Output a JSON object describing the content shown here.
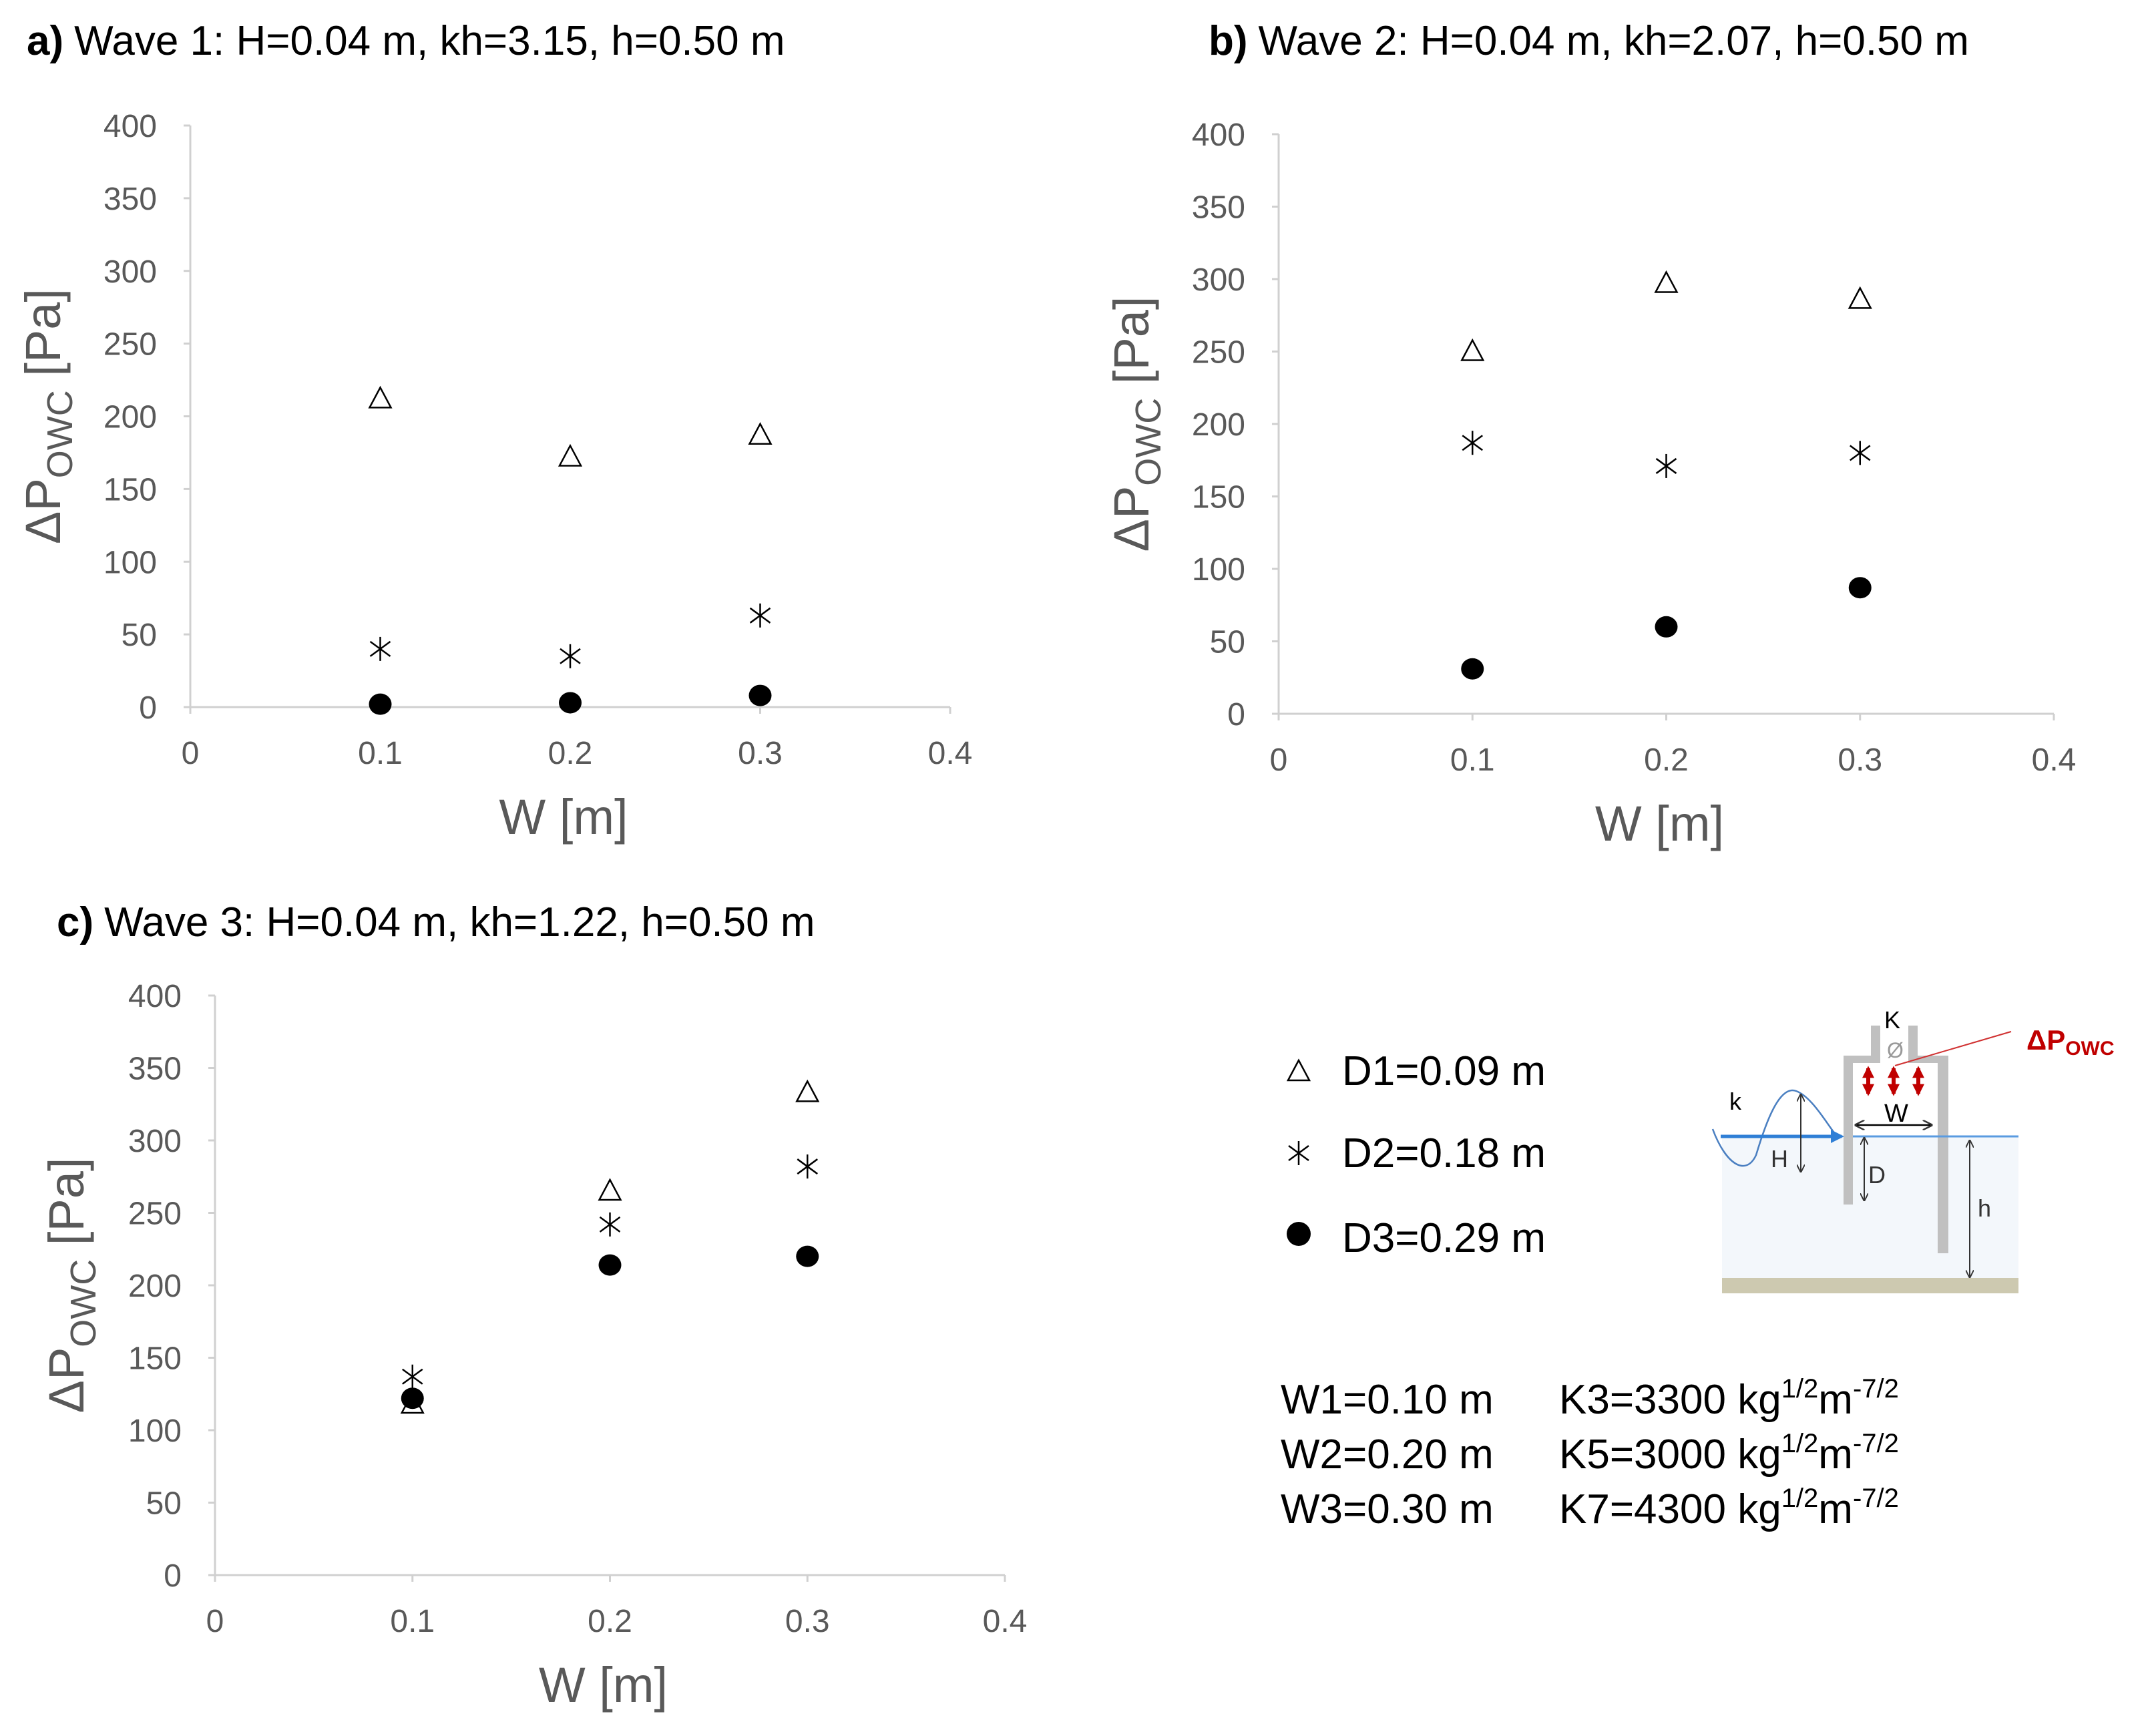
{
  "chart_data": [
    {
      "type": "scatter",
      "panel": "a)",
      "title": "Wave 1: H=0.04 m, kh=3.15, h=0.50 m",
      "xlabel": "W [m]",
      "ylabel": "ΔP",
      "ylabel_sub": "OWC",
      "ylabel_unit": " [Pa]",
      "xlim": [
        0,
        0.4
      ],
      "ylim": [
        0,
        400
      ],
      "xticks": [
        "0",
        "0.1",
        "0.2",
        "0.3",
        "0.4"
      ],
      "yticks": [
        "0",
        "50",
        "100",
        "150",
        "200",
        "250",
        "300",
        "350",
        "400"
      ],
      "x": [
        0.1,
        0.2,
        0.3
      ],
      "series": [
        {
          "name": "D1=0.09 m",
          "marker": "triangle-open",
          "values": [
            212,
            172,
            187
          ]
        },
        {
          "name": "D2=0.18 m",
          "marker": "asterisk",
          "values": [
            40,
            35,
            63
          ]
        },
        {
          "name": "D3=0.29 m",
          "marker": "circle-filled",
          "values": [
            2,
            3,
            8
          ]
        }
      ]
    },
    {
      "type": "scatter",
      "panel": "b)",
      "title": "Wave 2: H=0.04 m, kh=2.07, h=0.50 m",
      "xlabel": "W [m]",
      "ylabel": "ΔP",
      "ylabel_sub": "OWC",
      "ylabel_unit": " [Pa]",
      "xlim": [
        0,
        0.4
      ],
      "ylim": [
        0,
        400
      ],
      "xticks": [
        "0",
        "0.1",
        "0.2",
        "0.3",
        "0.4"
      ],
      "yticks": [
        "0",
        "50",
        "100",
        "150",
        "200",
        "250",
        "300",
        "350",
        "400"
      ],
      "x": [
        0.1,
        0.2,
        0.3
      ],
      "series": [
        {
          "name": "D1=0.09 m",
          "marker": "triangle-open",
          "values": [
            250,
            297,
            286
          ]
        },
        {
          "name": "D2=0.18 m",
          "marker": "asterisk",
          "values": [
            187,
            171,
            180
          ]
        },
        {
          "name": "D3=0.29 m",
          "marker": "circle-filled",
          "values": [
            31,
            60,
            87
          ]
        }
      ]
    },
    {
      "type": "scatter",
      "panel": "c)",
      "title": "Wave 3: H=0.04 m, kh=1.22, h=0.50 m",
      "xlabel": "W [m]",
      "ylabel": "ΔP",
      "ylabel_sub": "OWC",
      "ylabel_unit": " [Pa]",
      "xlim": [
        0,
        0.4
      ],
      "ylim": [
        0,
        400
      ],
      "xticks": [
        "0",
        "0.1",
        "0.2",
        "0.3",
        "0.4"
      ],
      "yticks": [
        "0",
        "50",
        "100",
        "150",
        "200",
        "250",
        "300",
        "350",
        "400"
      ],
      "x": [
        0.1,
        0.2,
        0.3
      ],
      "series": [
        {
          "name": "D1=0.09 m",
          "marker": "triangle-open",
          "values": [
            118,
            265,
            333
          ]
        },
        {
          "name": "D2=0.18 m",
          "marker": "asterisk",
          "values": [
            137,
            242,
            282
          ]
        },
        {
          "name": "D3=0.29 m",
          "marker": "circle-filled",
          "values": [
            122,
            214,
            220
          ]
        }
      ]
    }
  ],
  "legend": {
    "items": [
      "D1=0.09 m",
      "D2=0.18 m",
      "D3=0.29 m"
    ]
  },
  "parameters": [
    {
      "w": "W1=0.10 m",
      "k": "K3=3300 kg",
      "sup1": "1/2",
      "m": "m",
      "sup2": "-7/2"
    },
    {
      "w": "W2=0.20 m",
      "k": "K5=3000 kg",
      "sup1": "1/2",
      "m": "m",
      "sup2": "-7/2"
    },
    {
      "w": "W3=0.30 m",
      "k": "K7=4300 kg",
      "sup1": "1/2",
      "m": "m",
      "sup2": "-7/2"
    }
  ],
  "diagram": {
    "labels": {
      "K": "K",
      "valve": "Ø",
      "dp": "ΔP",
      "dp_sub": "OWC",
      "k": "k",
      "W": "W",
      "H": "H",
      "D": "D",
      "h": "h"
    },
    "colors": {
      "water": "#f3f7fb",
      "wall": "#c0c0c0",
      "seabed": "#cdc9b0",
      "wave": "#4a7fc1",
      "surface": "#2f7fd6",
      "pressure": "#c00000"
    }
  }
}
